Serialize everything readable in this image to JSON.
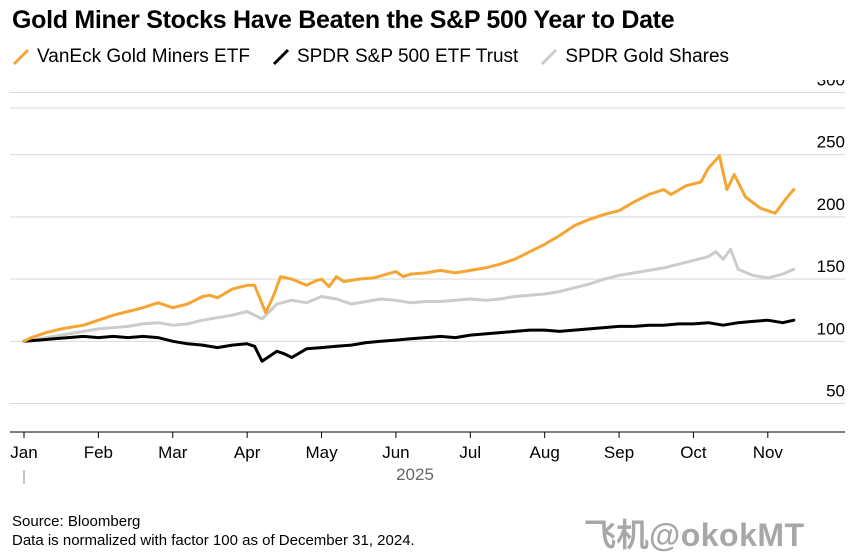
{
  "title": "Gold Miner Stocks Have Beaten the S&P 500 Year to Date",
  "legend": [
    {
      "label": "VanEck Gold Miners ETF",
      "color": "#f5a533"
    },
    {
      "label": "SPDR S&P 500 ETF Trust",
      "color": "#000000"
    },
    {
      "label": "SPDR Gold Shares",
      "color": "#cccccc"
    }
  ],
  "footer": {
    "source": "Source: Bloomberg",
    "note": "Data is normalized with factor 100 as of December 31, 2024."
  },
  "watermark": "飞机@okokMT",
  "chart_data": {
    "type": "line",
    "title": "Gold Miner Stocks Have Beaten the S&P 500 Year to Date",
    "xlabel": "2025",
    "ylabel": "",
    "x_ticks": [
      "Jan",
      "Feb",
      "Mar",
      "Apr",
      "May",
      "Jun",
      "Jul",
      "Aug",
      "Sep",
      "Oct",
      "Nov"
    ],
    "y_ticks": [
      50,
      100,
      150,
      200,
      250,
      300
    ],
    "ylim": [
      40,
      310
    ],
    "xlim": [
      0,
      10.5
    ],
    "grid": true,
    "legend_position": "top-left",
    "series": [
      {
        "name": "VanEck Gold Miners ETF",
        "color": "#f5a533",
        "x": [
          0,
          0.1,
          0.3,
          0.5,
          0.8,
          1.0,
          1.2,
          1.4,
          1.6,
          1.8,
          2.0,
          2.2,
          2.4,
          2.5,
          2.6,
          2.8,
          3.0,
          3.1,
          3.25,
          3.35,
          3.45,
          3.6,
          3.8,
          3.9,
          4.0,
          4.1,
          4.2,
          4.3,
          4.5,
          4.7,
          5.0,
          5.1,
          5.2,
          5.4,
          5.6,
          5.8,
          6.0,
          6.2,
          6.4,
          6.6,
          6.8,
          7.0,
          7.2,
          7.4,
          7.6,
          7.8,
          8.0,
          8.2,
          8.4,
          8.6,
          8.7,
          8.9,
          9.1,
          9.2,
          9.35,
          9.45,
          9.55,
          9.7,
          9.9,
          10.1,
          10.25,
          10.35
        ],
        "values": [
          100,
          103,
          107,
          110,
          113,
          117,
          121,
          124,
          127,
          131,
          127,
          130,
          136,
          137,
          135,
          142,
          145,
          145,
          123,
          136,
          152,
          150,
          145,
          148,
          150,
          144,
          152,
          148,
          150,
          151,
          156,
          152,
          154,
          155,
          157,
          155,
          157,
          159,
          162,
          166,
          172,
          178,
          185,
          193,
          198,
          202,
          205,
          212,
          218,
          222,
          218,
          225,
          228,
          239,
          249,
          222,
          234,
          216,
          207,
          203,
          215,
          222
        ]
      },
      {
        "name": "SPDR S&P 500 ETF Trust",
        "color": "#000000",
        "x": [
          0,
          0.2,
          0.4,
          0.6,
          0.8,
          1.0,
          1.2,
          1.4,
          1.6,
          1.8,
          2.0,
          2.2,
          2.4,
          2.6,
          2.8,
          3.0,
          3.1,
          3.2,
          3.3,
          3.4,
          3.5,
          3.6,
          3.8,
          4.0,
          4.2,
          4.4,
          4.6,
          4.8,
          5.0,
          5.2,
          5.4,
          5.6,
          5.8,
          6.0,
          6.2,
          6.4,
          6.6,
          6.8,
          7.0,
          7.2,
          7.4,
          7.6,
          7.8,
          8.0,
          8.2,
          8.4,
          8.6,
          8.8,
          9.0,
          9.2,
          9.4,
          9.6,
          9.8,
          10.0,
          10.2,
          10.35
        ],
        "values": [
          100,
          101,
          102,
          103,
          104,
          103,
          104,
          103,
          104,
          103,
          100,
          98,
          97,
          95,
          97,
          98,
          96,
          84,
          88,
          92,
          90,
          87,
          94,
          95,
          96,
          97,
          99,
          100,
          101,
          102,
          103,
          104,
          103,
          105,
          106,
          107,
          108,
          109,
          109,
          108,
          109,
          110,
          111,
          112,
          112,
          113,
          113,
          114,
          114,
          115,
          113,
          115,
          116,
          117,
          115,
          117
        ]
      },
      {
        "name": "SPDR Gold Shares",
        "color": "#cccccc",
        "x": [
          0,
          0.2,
          0.4,
          0.6,
          0.8,
          1.0,
          1.2,
          1.4,
          1.6,
          1.8,
          2.0,
          2.2,
          2.4,
          2.6,
          2.8,
          3.0,
          3.2,
          3.3,
          3.4,
          3.6,
          3.8,
          4.0,
          4.2,
          4.4,
          4.6,
          4.8,
          5.0,
          5.2,
          5.4,
          5.6,
          5.8,
          6.0,
          6.2,
          6.4,
          6.6,
          6.8,
          7.0,
          7.2,
          7.4,
          7.6,
          7.8,
          8.0,
          8.2,
          8.4,
          8.6,
          8.8,
          9.0,
          9.2,
          9.3,
          9.4,
          9.5,
          9.6,
          9.8,
          10.0,
          10.2,
          10.35
        ],
        "values": [
          100,
          102,
          104,
          106,
          108,
          110,
          111,
          112,
          114,
          115,
          113,
          114,
          117,
          119,
          121,
          124,
          118,
          124,
          130,
          133,
          131,
          136,
          134,
          130,
          132,
          134,
          133,
          131,
          132,
          132,
          133,
          134,
          133,
          134,
          136,
          137,
          138,
          140,
          143,
          146,
          150,
          153,
          155,
          157,
          159,
          162,
          165,
          168,
          172,
          166,
          174,
          158,
          153,
          151,
          154,
          158
        ]
      }
    ]
  }
}
